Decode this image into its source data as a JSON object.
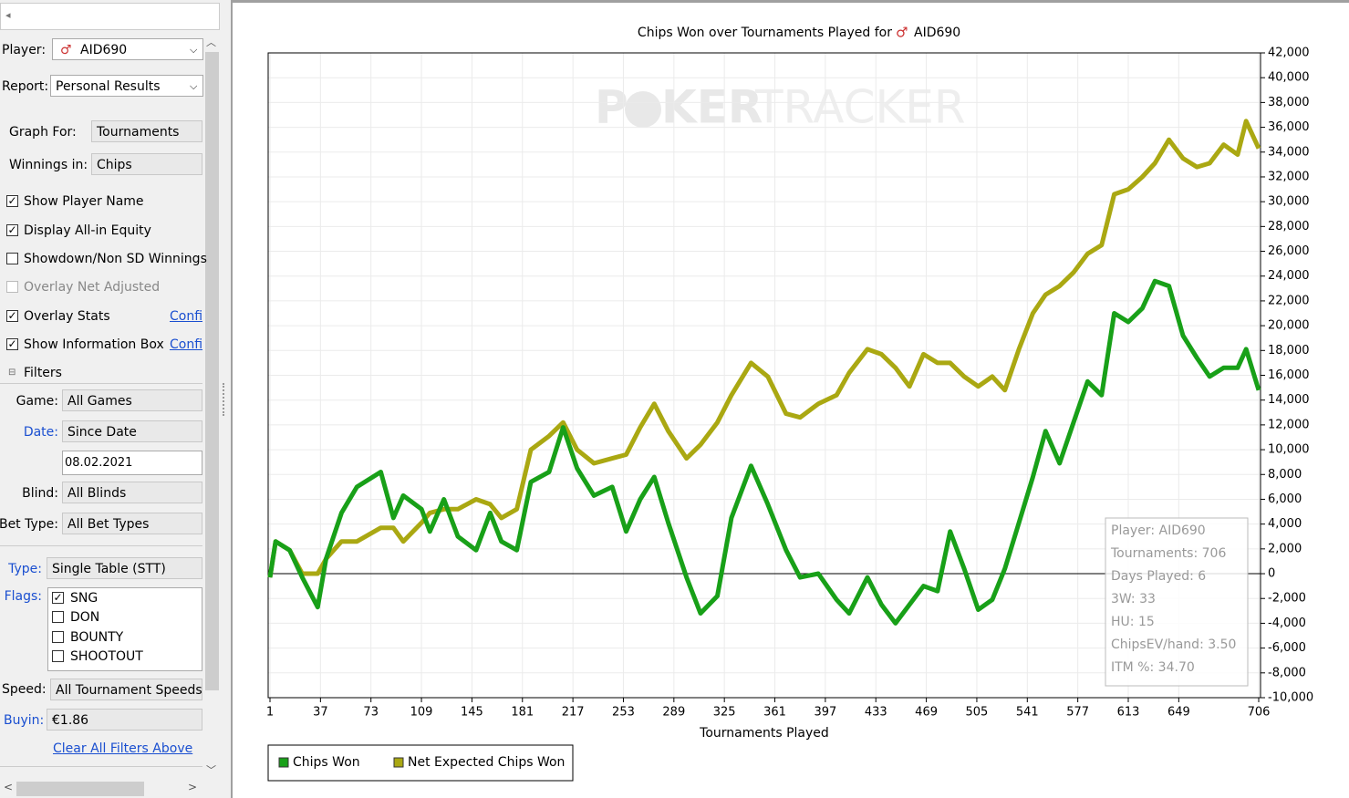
{
  "sidebar": {
    "player_label": "Player:",
    "player": "AID690",
    "report_label": "Report:",
    "report": "Personal Results",
    "graph_for_label": "Graph For:",
    "graph_for": "Tournaments",
    "winnings_label": "Winnings in:",
    "winnings": "Chips",
    "options": [
      {
        "label": "Show Player Name",
        "checked": true,
        "enabled": true
      },
      {
        "label": "Display All-in Equity",
        "checked": true,
        "enabled": true
      },
      {
        "label": "Showdown/Non SD Winnings",
        "checked": false,
        "enabled": true
      },
      {
        "label": "Overlay Net Adjusted",
        "checked": false,
        "enabled": false
      },
      {
        "label": "Overlay Stats",
        "checked": true,
        "enabled": true,
        "link": "Confi"
      },
      {
        "label": "Show Information Box",
        "checked": true,
        "enabled": true,
        "link": "Confi"
      }
    ],
    "filters_label": "Filters",
    "game_label": "Game:",
    "game": "All Games",
    "date_label": "Date:",
    "date": "Since Date",
    "date_value": "08.02.2021",
    "blind_label": "Blind:",
    "blind": "All Blinds",
    "bet_type_label": "Bet Type:",
    "bet_type": "All Bet Types",
    "type_label": "Type:",
    "type": "Single Table (STT)",
    "flags_label": "Flags:",
    "flags": [
      {
        "label": "SNG",
        "checked": true
      },
      {
        "label": "DON",
        "checked": false
      },
      {
        "label": "BOUNTY",
        "checked": false
      },
      {
        "label": "SHOOTOUT",
        "checked": false
      }
    ],
    "speed_label": "Speed:",
    "speed": "All Tournament Speeds",
    "buyin_label": "Buyin:",
    "buyin": "€1.86",
    "clear": "Clear All Filters Above"
  },
  "chart_data": {
    "type": "line",
    "title": "Chips Won over Tournaments Played for",
    "title_player": "AID690",
    "watermark": [
      "P",
      "KER",
      "TRACKER"
    ],
    "x_label": "Tournaments Played",
    "x": [
      1,
      5,
      15,
      24,
      35,
      41,
      52,
      63,
      80,
      89,
      96,
      109,
      115,
      125,
      135,
      148,
      158,
      166,
      177,
      187,
      200,
      210,
      220,
      232,
      245,
      255,
      265,
      275,
      285,
      298,
      308,
      320,
      330,
      344,
      356,
      369,
      379,
      392,
      405,
      414,
      427,
      437,
      447,
      457,
      467,
      477,
      486,
      496,
      506,
      516,
      525,
      535,
      545,
      554,
      564,
      574,
      584,
      594,
      603,
      613,
      623,
      632,
      642,
      652,
      662,
      671,
      681,
      691,
      697,
      706
    ],
    "xlim": [
      1,
      706
    ],
    "xticks": [
      1,
      37,
      73,
      109,
      145,
      181,
      217,
      253,
      289,
      325,
      361,
      397,
      433,
      469,
      505,
      541,
      577,
      613,
      649,
      706
    ],
    "ylim": [
      -10000,
      42000
    ],
    "yticks": [
      {
        "value": -10000,
        "label": "-10,000"
      },
      {
        "value": -8000,
        "label": "-8,000"
      },
      {
        "value": -6000,
        "label": "-6,000"
      },
      {
        "value": -4000,
        "label": "-4,000"
      },
      {
        "value": -2000,
        "label": "-2,000"
      },
      0,
      {
        "value": 2000,
        "label": "2,000"
      },
      {
        "value": 4000,
        "label": "4,000"
      },
      {
        "value": 6000,
        "label": "6,000"
      },
      {
        "value": 8000,
        "label": "8,000"
      },
      {
        "value": 10000,
        "label": "10,000"
      },
      {
        "value": 12000,
        "label": "12,000"
      },
      {
        "value": 14000,
        "label": "14,000"
      },
      {
        "value": 16000,
        "label": "16,000"
      },
      {
        "value": 18000,
        "label": "18,000"
      },
      {
        "value": 20000,
        "label": "20,000"
      },
      {
        "value": 22000,
        "label": "22,000"
      },
      {
        "value": 24000,
        "label": "24,000"
      },
      {
        "value": 26000,
        "label": "26,000"
      },
      {
        "value": 28000,
        "label": "28,000"
      },
      {
        "value": 30000,
        "label": "30,000"
      },
      {
        "value": 32000,
        "label": "32,000"
      },
      {
        "value": 34000,
        "label": "34,000"
      },
      {
        "value": 36000,
        "label": "36,000"
      },
      {
        "value": 38000,
        "label": "38,000"
      },
      {
        "value": 40000,
        "label": "40,000"
      },
      {
        "value": 42000,
        "label": "42,000"
      }
    ],
    "grid": true,
    "series": [
      {
        "name": "Chips Won",
        "color": "#18a018",
        "values": [
          -300,
          2600,
          1900,
          -300,
          -2700,
          1200,
          4900,
          7000,
          8200,
          4500,
          6300,
          5200,
          3400,
          6000,
          3000,
          1900,
          4900,
          2600,
          1900,
          7400,
          8200,
          11800,
          8500,
          6300,
          7000,
          3400,
          6000,
          7800,
          4100,
          -300,
          -3200,
          -1800,
          4500,
          8700,
          5600,
          1900,
          -300,
          0,
          -2100,
          -3200,
          -300,
          -2500,
          -4000,
          -2500,
          -1000,
          -1400,
          3400,
          400,
          -2900,
          -2100,
          400,
          4100,
          7800,
          11500,
          8900,
          12200,
          15500,
          14400,
          21000,
          20300,
          21400,
          23600,
          23200,
          19200,
          17400,
          15900,
          16600,
          16600,
          18100,
          14800
        ]
      },
      {
        "name": "Net Expected Chips Won",
        "color": "#aaa812",
        "values": [
          -300,
          2600,
          1900,
          0,
          0,
          1200,
          2600,
          2600,
          3700,
          3700,
          2600,
          4100,
          4900,
          5200,
          5200,
          6000,
          5600,
          4500,
          5200,
          10000,
          11100,
          12200,
          10000,
          8900,
          9300,
          9600,
          11800,
          13700,
          11500,
          9300,
          10400,
          12200,
          14400,
          17000,
          15900,
          12900,
          12600,
          13700,
          14400,
          16200,
          18100,
          17700,
          16600,
          15100,
          17700,
          17000,
          17000,
          15900,
          15100,
          15900,
          14800,
          18100,
          21000,
          22500,
          23200,
          24300,
          25800,
          26500,
          30600,
          31000,
          32000,
          33100,
          35000,
          33500,
          32800,
          33100,
          34600,
          33800,
          36500,
          34300
        ]
      }
    ],
    "legend": "bottom-left",
    "info_box": [
      "Player: AID690",
      "Tournaments: 706",
      "Days Played: 6",
      "3W: 33",
      "HU: 15",
      "ChipsEV/hand: 3.50",
      "ITM %: 34.70"
    ]
  }
}
